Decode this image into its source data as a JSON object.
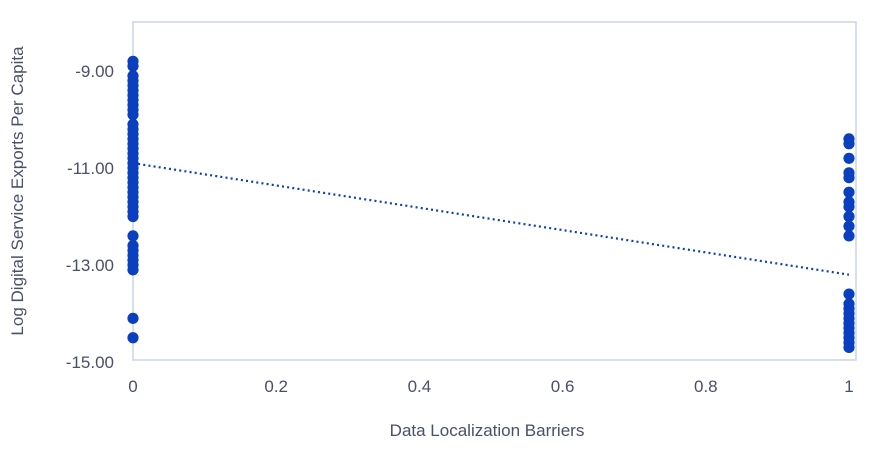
{
  "chart_data": {
    "type": "scatter",
    "xlabel": "Data Localization Barriers",
    "ylabel": "Log Digital Service Exports Per Capita",
    "xlim": [
      0,
      1
    ],
    "ylim": [
      -15,
      -8
    ],
    "x_ticks": [
      0,
      0.2,
      0.4,
      0.6,
      0.8,
      1
    ],
    "x_tick_labels": [
      "0",
      "0.2",
      "0.4",
      "0.6",
      "0.8",
      "1"
    ],
    "y_ticks": [
      -9,
      -11,
      -13,
      -15
    ],
    "y_tick_labels": [
      "-9.00",
      "-11.00",
      "-13.00",
      "-15.00"
    ],
    "grid": false,
    "legend": "none",
    "colors": {
      "marker": "#0a3fbf",
      "trendline": "#0a3fbf",
      "plot_border": "#c9d4ea",
      "text": "#4a4f6a"
    },
    "series": [
      {
        "points": [
          [
            0,
            -8.8
          ],
          [
            0,
            -8.9
          ],
          [
            0,
            -9.1
          ],
          [
            0,
            -9.2
          ],
          [
            0,
            -9.3
          ],
          [
            0,
            -9.4
          ],
          [
            0,
            -9.5
          ],
          [
            0,
            -9.6
          ],
          [
            0,
            -9.7
          ],
          [
            0,
            -9.8
          ],
          [
            0,
            -9.9
          ],
          [
            0,
            -10.1
          ],
          [
            0,
            -10.2
          ],
          [
            0,
            -10.3
          ],
          [
            0,
            -10.4
          ],
          [
            0,
            -10.5
          ],
          [
            0,
            -10.6
          ],
          [
            0,
            -10.7
          ],
          [
            0,
            -10.8
          ],
          [
            0,
            -10.9
          ],
          [
            0,
            -11.0
          ],
          [
            0,
            -11.1
          ],
          [
            0,
            -11.2
          ],
          [
            0,
            -11.3
          ],
          [
            0,
            -11.4
          ],
          [
            0,
            -11.5
          ],
          [
            0,
            -11.6
          ],
          [
            0,
            -11.7
          ],
          [
            0,
            -11.8
          ],
          [
            0,
            -11.9
          ],
          [
            0,
            -12.0
          ],
          [
            0,
            -12.4
          ],
          [
            0,
            -12.6
          ],
          [
            0,
            -12.7
          ],
          [
            0,
            -12.8
          ],
          [
            0,
            -12.9
          ],
          [
            0,
            -13.0
          ],
          [
            0,
            -13.1
          ],
          [
            0,
            -14.1
          ],
          [
            0,
            -14.5
          ],
          [
            1,
            -10.4
          ],
          [
            1,
            -10.5
          ],
          [
            1,
            -10.8
          ],
          [
            1,
            -11.1
          ],
          [
            1,
            -11.2
          ],
          [
            1,
            -11.5
          ],
          [
            1,
            -11.7
          ],
          [
            1,
            -11.8
          ],
          [
            1,
            -12.0
          ],
          [
            1,
            -12.2
          ],
          [
            1,
            -12.4
          ],
          [
            1,
            -13.6
          ],
          [
            1,
            -13.8
          ],
          [
            1,
            -13.9
          ],
          [
            1,
            -14.0
          ],
          [
            1,
            -14.1
          ],
          [
            1,
            -14.2
          ],
          [
            1,
            -14.3
          ],
          [
            1,
            -14.4
          ],
          [
            1,
            -14.5
          ],
          [
            1,
            -14.6
          ],
          [
            1,
            -14.7
          ]
        ]
      }
    ],
    "trendline": {
      "style": "dotted",
      "x": [
        0,
        1
      ],
      "y": [
        -10.9,
        -13.2
      ]
    }
  }
}
